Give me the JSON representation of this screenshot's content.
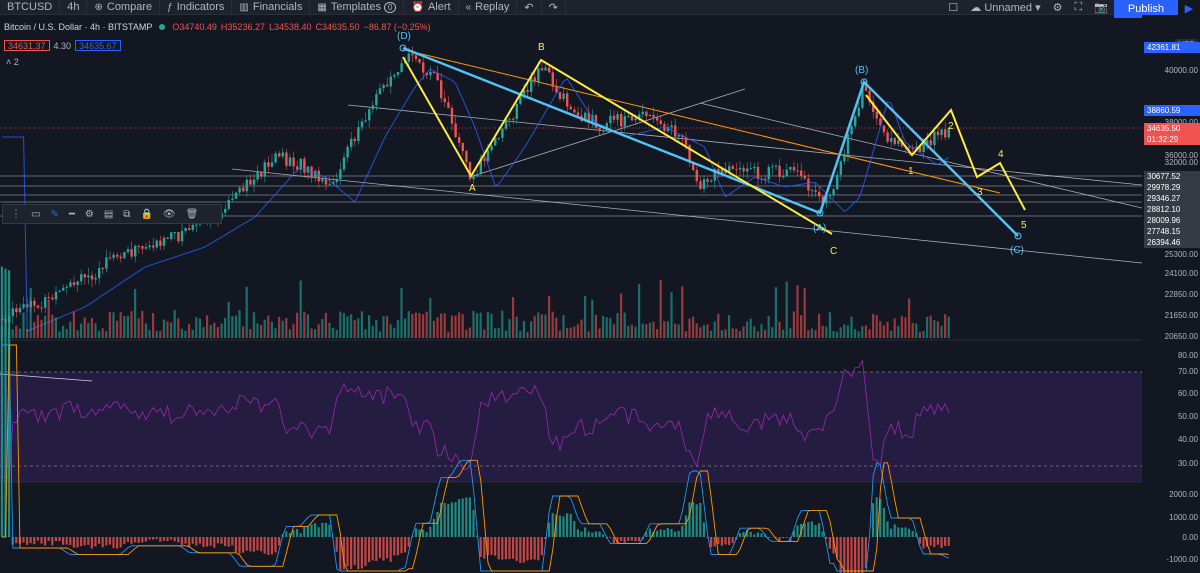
{
  "toolbar": {
    "symbol": "BTCUSD",
    "interval": "4h",
    "compare": "Compare",
    "indicators": "Indicators",
    "financials": "Financials",
    "templates": "Templates",
    "templates_count": "0",
    "alert": "Alert",
    "replay": "Replay",
    "layout_name": "Unnamed",
    "publish": "Publish"
  },
  "legend": {
    "title": "Bitcoin / U.S. Dollar · 4h · BITSTAMP",
    "open": "O34740.49",
    "high": "H35236.27",
    "low": "L34538.40",
    "close": "C34635.50",
    "change": "−86.87 (−0.25%)",
    "bid": "34631.37",
    "spread": "4.30",
    "ask": "34635.67",
    "indicators_count": "2"
  },
  "price_axis": {
    "currency": "USD",
    "ticks": [
      "40000.00",
      "38000.00",
      "36000.00",
      "32000.00",
      "25300.00",
      "24100.00",
      "22850.00",
      "21650.00",
      "20650.00"
    ],
    "price_boxes": [
      {
        "value": "42361.81",
        "color": "#2962ff"
      },
      {
        "value": "38860.59",
        "color": "#2962ff"
      },
      {
        "value": "34635.50",
        "color": "#ef5350"
      },
      {
        "value": "01:32:29",
        "color": "#ef5350"
      },
      {
        "value": "30677.52",
        "color": "#363a45"
      },
      {
        "value": "29978.29",
        "color": "#363a45"
      },
      {
        "value": "29346.27",
        "color": "#363a45"
      },
      {
        "value": "28812.10",
        "color": "#363a45"
      },
      {
        "value": "28009.96",
        "color": "#363a45"
      },
      {
        "value": "27748.15",
        "color": "#363a45"
      },
      {
        "value": "26394.46",
        "color": "#363a45"
      }
    ],
    "rsi_ticks": [
      "80.00",
      "70.00",
      "60.00",
      "50.00",
      "40.00",
      "30.00"
    ],
    "macd_ticks": [
      "2000.00",
      "1000.00",
      "0.00",
      "-1000.00"
    ]
  },
  "waves": {
    "blue_labels": [
      "(D)",
      "(A)",
      "(B)",
      "(C)"
    ],
    "yellow_labels": [
      "A",
      "B",
      "C",
      "1",
      "2",
      "3",
      "4",
      "5"
    ]
  },
  "colors": {
    "up": "#26a69a",
    "down": "#ef5350",
    "wave_blue": "#4fc3f7",
    "wave_yellow": "#ffeb3b",
    "trend_orange": "#ff9800",
    "rsi": "#9c27b0",
    "rsi_band": "#2a1f4a"
  }
}
